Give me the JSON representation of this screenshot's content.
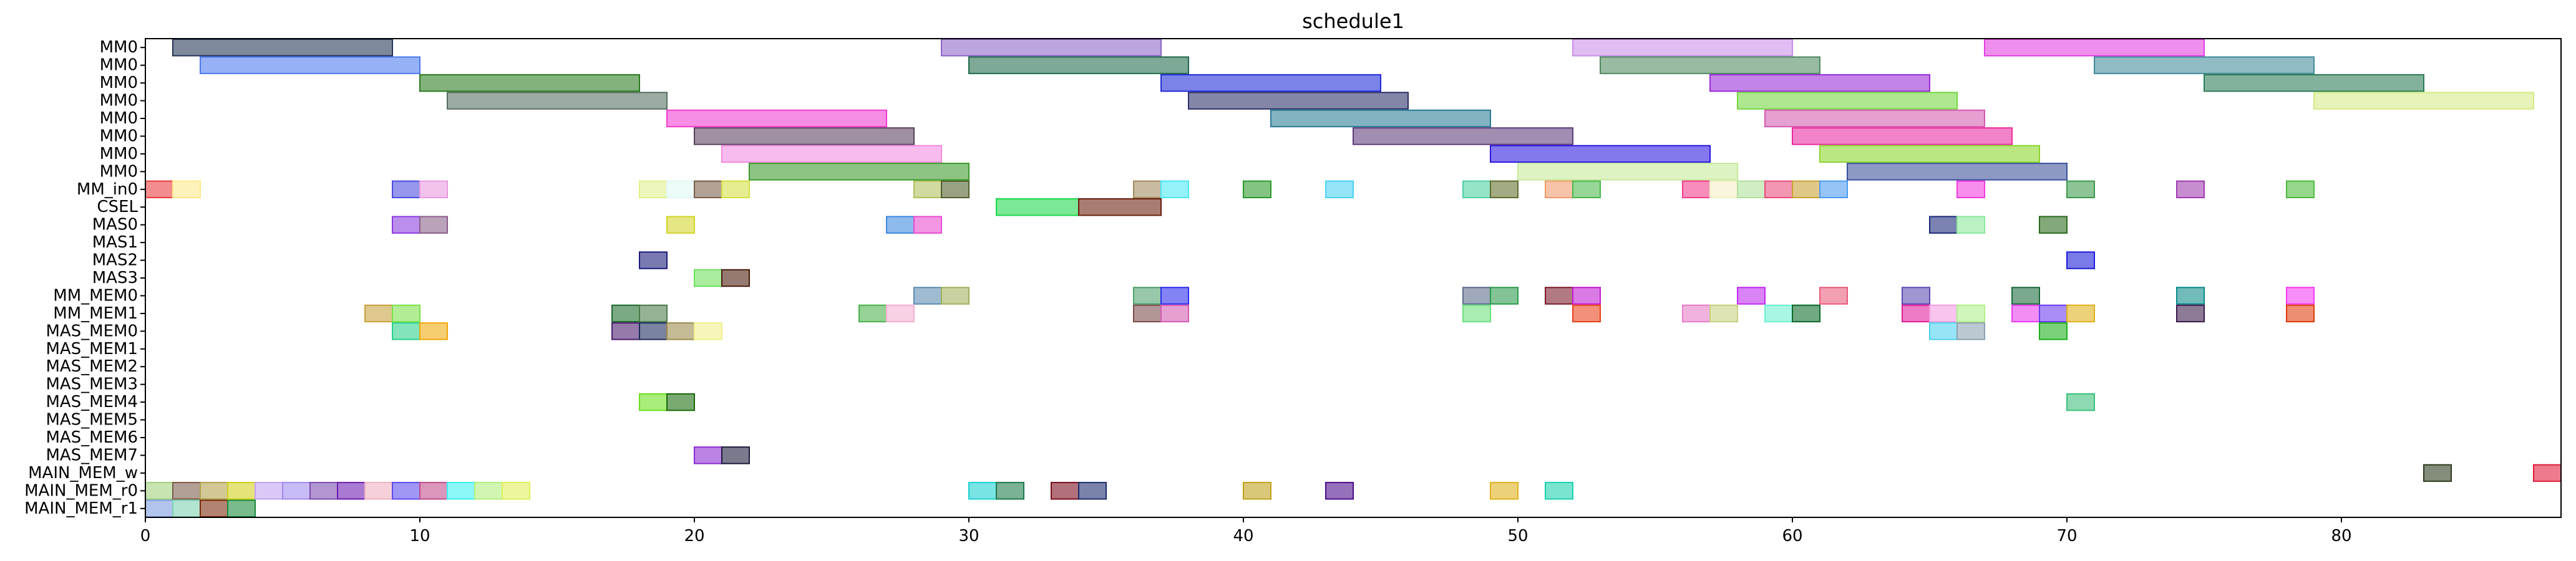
{
  "chart_data": {
    "type": "gantt",
    "title": "schedule1",
    "xlim": [
      0,
      88
    ],
    "xticks": [
      0,
      10,
      20,
      30,
      40,
      50,
      60,
      70,
      80
    ],
    "rows": [
      "MM0",
      "MM0",
      "MM0",
      "MM0",
      "MM0",
      "MM0",
      "MM0",
      "MM0",
      "MM_in0",
      "CSEL",
      "MAS0",
      "MAS1",
      "MAS2",
      "MAS3",
      "MM_MEM0",
      "MM_MEM1",
      "MAS_MEM0",
      "MAS_MEM1",
      "MAS_MEM2",
      "MAS_MEM3",
      "MAS_MEM4",
      "MAS_MEM5",
      "MAS_MEM6",
      "MAS_MEM7",
      "MAIN_MEM_w",
      "MAIN_MEM_r0",
      "MAIN_MEM_r1"
    ],
    "bars": [
      {
        "row": 0,
        "start": 1,
        "end": 9,
        "color": "#223355"
      },
      {
        "row": 0,
        "start": 29,
        "end": 37,
        "color": "#8e64c8"
      },
      {
        "row": 0,
        "start": 52,
        "end": 60,
        "color": "#c98ee8"
      },
      {
        "row": 0,
        "start": 67,
        "end": 75,
        "color": "#e33ee0"
      },
      {
        "row": 1,
        "start": 2,
        "end": 10,
        "color": "#4a78f0"
      },
      {
        "row": 1,
        "start": 30,
        "end": 38,
        "color": "#1f6a4a"
      },
      {
        "row": 1,
        "start": 53,
        "end": 61,
        "color": "#4e8a5e"
      },
      {
        "row": 1,
        "start": 71,
        "end": 79,
        "color": "#3f8a9a"
      },
      {
        "row": 2,
        "start": 10,
        "end": 18,
        "color": "#2a7a1e"
      },
      {
        "row": 2,
        "start": 37,
        "end": 45,
        "color": "#1e2ad8"
      },
      {
        "row": 2,
        "start": 57,
        "end": 65,
        "color": "#9a2ad8"
      },
      {
        "row": 2,
        "start": 75,
        "end": 83,
        "color": "#2a7a55"
      },
      {
        "row": 3,
        "start": 11,
        "end": 19,
        "color": "#556e5e"
      },
      {
        "row": 3,
        "start": 38,
        "end": 46,
        "color": "#2a2f66"
      },
      {
        "row": 3,
        "start": 58,
        "end": 66,
        "color": "#74d640"
      },
      {
        "row": 3,
        "start": 79,
        "end": 87,
        "color": "#d4ea86"
      },
      {
        "row": 4,
        "start": 19,
        "end": 27,
        "color": "#f23ad0"
      },
      {
        "row": 4,
        "start": 41,
        "end": 49,
        "color": "#2a7a94"
      },
      {
        "row": 4,
        "start": 59,
        "end": 67,
        "color": "#d45ab0"
      },
      {
        "row": 5,
        "start": 20,
        "end": 28,
        "color": "#5a3e5e"
      },
      {
        "row": 5,
        "start": 44,
        "end": 52,
        "color": "#5e3a7a"
      },
      {
        "row": 5,
        "start": 60,
        "end": 68,
        "color": "#ea2aa0"
      },
      {
        "row": 6,
        "start": 21,
        "end": 29,
        "color": "#f28ae0"
      },
      {
        "row": 6,
        "start": 49,
        "end": 57,
        "color": "#2a16e0"
      },
      {
        "row": 6,
        "start": 61,
        "end": 69,
        "color": "#8ad62a"
      },
      {
        "row": 7,
        "start": 22,
        "end": 30,
        "color": "#3a9a2a"
      },
      {
        "row": 7,
        "start": 50,
        "end": 58,
        "color": "#c6ea9a"
      },
      {
        "row": 7,
        "start": 62,
        "end": 70,
        "color": "#3a509a"
      },
      {
        "row": 8,
        "start": 0,
        "end": 1,
        "color": "#ea3a3a"
      },
      {
        "row": 8,
        "start": 1,
        "end": 2,
        "color": "#fde88a"
      },
      {
        "row": 8,
        "start": 9,
        "end": 10,
        "color": "#4a4ae0"
      },
      {
        "row": 8,
        "start": 10,
        "end": 11,
        "color": "#e89ae0"
      },
      {
        "row": 8,
        "start": 18,
        "end": 19,
        "color": "#e0f08a"
      },
      {
        "row": 8,
        "start": 19,
        "end": 20,
        "color": "#e0f8f4"
      },
      {
        "row": 8,
        "start": 20,
        "end": 21,
        "color": "#7a5e4a"
      },
      {
        "row": 8,
        "start": 21,
        "end": 22,
        "color": "#d4e040"
      },
      {
        "row": 8,
        "start": 28,
        "end": 29,
        "color": "#b0c05a"
      },
      {
        "row": 8,
        "start": 29,
        "end": 30,
        "color": "#4e5e2a"
      },
      {
        "row": 8,
        "start": 36,
        "end": 37,
        "color": "#a08a5e"
      },
      {
        "row": 8,
        "start": 37,
        "end": 38,
        "color": "#4ae8f4"
      },
      {
        "row": 8,
        "start": 40,
        "end": 41,
        "color": "#2a9a2a"
      },
      {
        "row": 8,
        "start": 43,
        "end": 44,
        "color": "#4ad0f4"
      },
      {
        "row": 8,
        "start": 48,
        "end": 49,
        "color": "#4ad0a0"
      },
      {
        "row": 8,
        "start": 49,
        "end": 50,
        "color": "#5e6e2a"
      },
      {
        "row": 8,
        "start": 51,
        "end": 52,
        "color": "#f29a6a"
      },
      {
        "row": 8,
        "start": 52,
        "end": 53,
        "color": "#4ab84a"
      },
      {
        "row": 8,
        "start": 56,
        "end": 57,
        "color": "#f23a8a"
      },
      {
        "row": 8,
        "start": 57,
        "end": 58,
        "color": "#f4f0c4"
      },
      {
        "row": 8,
        "start": 58,
        "end": 59,
        "color": "#b0e09a"
      },
      {
        "row": 8,
        "start": 59,
        "end": 60,
        "color": "#e84a7a"
      },
      {
        "row": 8,
        "start": 60,
        "end": 61,
        "color": "#c8a030"
      },
      {
        "row": 8,
        "start": 61,
        "end": 62,
        "color": "#4a9af0"
      },
      {
        "row": 8,
        "start": 66,
        "end": 67,
        "color": "#f23ae0"
      },
      {
        "row": 8,
        "start": 70,
        "end": 71,
        "color": "#3a9a4a"
      },
      {
        "row": 8,
        "start": 74,
        "end": 75,
        "color": "#a03ab0"
      },
      {
        "row": 8,
        "start": 78,
        "end": 79,
        "color": "#4aba3a"
      },
      {
        "row": 9,
        "start": 31,
        "end": 34,
        "color": "#1ad84a"
      },
      {
        "row": 9,
        "start": 34,
        "end": 37,
        "color": "#6a1e0a"
      },
      {
        "row": 10,
        "start": 9,
        "end": 10,
        "color": "#8a3ae0"
      },
      {
        "row": 10,
        "start": 10,
        "end": 11,
        "color": "#8a5e8a"
      },
      {
        "row": 10,
        "start": 19,
        "end": 20,
        "color": "#d4d42a"
      },
      {
        "row": 10,
        "start": 27,
        "end": 28,
        "color": "#3a8ae0"
      },
      {
        "row": 10,
        "start": 28,
        "end": 29,
        "color": "#e84ad0"
      },
      {
        "row": 10,
        "start": 65,
        "end": 66,
        "color": "#1a2a7a"
      },
      {
        "row": 10,
        "start": 66,
        "end": 67,
        "color": "#8ae89a"
      },
      {
        "row": 10,
        "start": 69,
        "end": 70,
        "color": "#2a6a1a"
      },
      {
        "row": 12,
        "start": 18,
        "end": 19,
        "color": "#1a1a7a"
      },
      {
        "row": 12,
        "start": 70,
        "end": 71,
        "color": "#1a1ad8"
      },
      {
        "row": 13,
        "start": 20,
        "end": 21,
        "color": "#6ae05a"
      },
      {
        "row": 13,
        "start": 21,
        "end": 22,
        "color": "#4a1a0a"
      },
      {
        "row": 14,
        "start": 28,
        "end": 29,
        "color": "#5a8ab0"
      },
      {
        "row": 14,
        "start": 29,
        "end": 30,
        "color": "#a0b05a"
      },
      {
        "row": 14,
        "start": 36,
        "end": 37,
        "color": "#4aa06a"
      },
      {
        "row": 14,
        "start": 37,
        "end": 38,
        "color": "#2a2af0"
      },
      {
        "row": 14,
        "start": 48,
        "end": 49,
        "color": "#5a6a8a"
      },
      {
        "row": 14,
        "start": 49,
        "end": 50,
        "color": "#2a9a4a"
      },
      {
        "row": 14,
        "start": 51,
        "end": 52,
        "color": "#7a1a2a"
      },
      {
        "row": 14,
        "start": 52,
        "end": 53,
        "color": "#c01ad0"
      },
      {
        "row": 14,
        "start": 58,
        "end": 59,
        "color": "#c02af0"
      },
      {
        "row": 14,
        "start": 61,
        "end": 62,
        "color": "#e85a7a"
      },
      {
        "row": 14,
        "start": 64,
        "end": 65,
        "color": "#5a4ab0"
      },
      {
        "row": 14,
        "start": 68,
        "end": 69,
        "color": "#1a6a3a"
      },
      {
        "row": 14,
        "start": 74,
        "end": 75,
        "color": "#0a8a8a"
      },
      {
        "row": 14,
        "start": 78,
        "end": 79,
        "color": "#f23af0"
      },
      {
        "row": 15,
        "start": 8,
        "end": 9,
        "color": "#c8a03a"
      },
      {
        "row": 15,
        "start": 9,
        "end": 10,
        "color": "#7ae04a"
      },
      {
        "row": 15,
        "start": 17,
        "end": 18,
        "color": "#1a6a2a"
      },
      {
        "row": 15,
        "start": 18,
        "end": 19,
        "color": "#4a7a4a"
      },
      {
        "row": 15,
        "start": 26,
        "end": 27,
        "color": "#4ab04a"
      },
      {
        "row": 15,
        "start": 27,
        "end": 28,
        "color": "#f4b0d0"
      },
      {
        "row": 15,
        "start": 36,
        "end": 37,
        "color": "#7a4a4a"
      },
      {
        "row": 15,
        "start": 37,
        "end": 38,
        "color": "#d45ab0"
      },
      {
        "row": 15,
        "start": 48,
        "end": 49,
        "color": "#6ae07a"
      },
      {
        "row": 15,
        "start": 52,
        "end": 53,
        "color": "#e8401a"
      },
      {
        "row": 15,
        "start": 56,
        "end": 57,
        "color": "#e87ac8"
      },
      {
        "row": 15,
        "start": 57,
        "end": 58,
        "color": "#c8d080"
      },
      {
        "row": 15,
        "start": 59,
        "end": 60,
        "color": "#6af0d0"
      },
      {
        "row": 15,
        "start": 60,
        "end": 61,
        "color": "#0a6a2a"
      },
      {
        "row": 15,
        "start": 64,
        "end": 65,
        "color": "#e01a9a"
      },
      {
        "row": 15,
        "start": 65,
        "end": 66,
        "color": "#f49ae0"
      },
      {
        "row": 15,
        "start": 66,
        "end": 67,
        "color": "#b0f08a"
      },
      {
        "row": 15,
        "start": 68,
        "end": 69,
        "color": "#e83af0"
      },
      {
        "row": 15,
        "start": 69,
        "end": 70,
        "color": "#6a3af0"
      },
      {
        "row": 15,
        "start": 70,
        "end": 71,
        "color": "#e0b01a"
      },
      {
        "row": 15,
        "start": 74,
        "end": 75,
        "color": "#3a1a4a"
      },
      {
        "row": 15,
        "start": 78,
        "end": 79,
        "color": "#e03a0a"
      },
      {
        "row": 16,
        "start": 9,
        "end": 10,
        "color": "#2ad08a"
      },
      {
        "row": 16,
        "start": 10,
        "end": 11,
        "color": "#f0a80a"
      },
      {
        "row": 16,
        "start": 17,
        "end": 18,
        "color": "#4a1a6a"
      },
      {
        "row": 16,
        "start": 18,
        "end": 19,
        "color": "#1a2a5a"
      },
      {
        "row": 16,
        "start": 19,
        "end": 20,
        "color": "#9a8a4a"
      },
      {
        "row": 16,
        "start": 20,
        "end": 21,
        "color": "#f0f08a"
      },
      {
        "row": 16,
        "start": 65,
        "end": 66,
        "color": "#4ad0f0"
      },
      {
        "row": 16,
        "start": 66,
        "end": 67,
        "color": "#8aa0b0"
      },
      {
        "row": 16,
        "start": 69,
        "end": 70,
        "color": "#1ab01a"
      },
      {
        "row": 20,
        "start": 18,
        "end": 19,
        "color": "#6ae01a"
      },
      {
        "row": 20,
        "start": 19,
        "end": 20,
        "color": "#1a6a0a"
      },
      {
        "row": 20,
        "start": 70,
        "end": 71,
        "color": "#3ac07a"
      },
      {
        "row": 23,
        "start": 20,
        "end": 21,
        "color": "#8a2ad0"
      },
      {
        "row": 23,
        "start": 21,
        "end": 22,
        "color": "#1a1a3a"
      },
      {
        "row": 24,
        "start": 83,
        "end": 84,
        "color": "#2a3a1a"
      },
      {
        "row": 24,
        "start": 87,
        "end": 88,
        "color": "#e01a3a"
      },
      {
        "row": 25,
        "start": 0,
        "end": 1,
        "color": "#a0d07a"
      },
      {
        "row": 25,
        "start": 1,
        "end": 2,
        "color": "#7a5a4a"
      },
      {
        "row": 25,
        "start": 2,
        "end": 3,
        "color": "#b0a04a"
      },
      {
        "row": 25,
        "start": 3,
        "end": 4,
        "color": "#d0d01a"
      },
      {
        "row": 25,
        "start": 4,
        "end": 5,
        "color": "#c0a0f0"
      },
      {
        "row": 25,
        "start": 5,
        "end": 6,
        "color": "#a08af0"
      },
      {
        "row": 25,
        "start": 6,
        "end": 7,
        "color": "#7a4ab0"
      },
      {
        "row": 25,
        "start": 7,
        "end": 8,
        "color": "#6a1ab0"
      },
      {
        "row": 25,
        "start": 8,
        "end": 9,
        "color": "#f0b0c0"
      },
      {
        "row": 25,
        "start": 9,
        "end": 10,
        "color": "#5a4af0"
      },
      {
        "row": 25,
        "start": 10,
        "end": 11,
        "color": "#c04a8a"
      },
      {
        "row": 25,
        "start": 11,
        "end": 12,
        "color": "#3af0f0"
      },
      {
        "row": 25,
        "start": 12,
        "end": 13,
        "color": "#b0f07a"
      },
      {
        "row": 25,
        "start": 13,
        "end": 14,
        "color": "#e0f05a"
      },
      {
        "row": 25,
        "start": 30,
        "end": 31,
        "color": "#1ad0d0"
      },
      {
        "row": 25,
        "start": 31,
        "end": 32,
        "color": "#1a7a4a"
      },
      {
        "row": 25,
        "start": 33,
        "end": 34,
        "color": "#7a0a1a"
      },
      {
        "row": 25,
        "start": 34,
        "end": 35,
        "color": "#1a2a6a"
      },
      {
        "row": 25,
        "start": 40,
        "end": 41,
        "color": "#c0a01a"
      },
      {
        "row": 25,
        "start": 43,
        "end": 44,
        "color": "#4a0a8a"
      },
      {
        "row": 25,
        "start": 49,
        "end": 50,
        "color": "#e0b01a"
      },
      {
        "row": 25,
        "start": 51,
        "end": 52,
        "color": "#1ad0b0"
      },
      {
        "row": 26,
        "start": 0,
        "end": 1,
        "color": "#7a9ae0"
      },
      {
        "row": 26,
        "start": 1,
        "end": 2,
        "color": "#7ad0b0"
      },
      {
        "row": 26,
        "start": 2,
        "end": 3,
        "color": "#7a2a0a"
      },
      {
        "row": 26,
        "start": 3,
        "end": 4,
        "color": "#1a8a3a"
      }
    ]
  }
}
